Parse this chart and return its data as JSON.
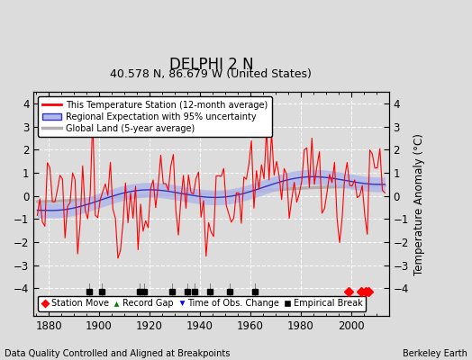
{
  "title": "DELPHI 2 N",
  "subtitle": "40.578 N, 86.679 W (United States)",
  "ylabel": "Temperature Anomaly (°C)",
  "footer_left": "Data Quality Controlled and Aligned at Breakpoints",
  "footer_right": "Berkeley Earth",
  "year_start": 1875,
  "year_end": 2013,
  "ylim": [
    -5.2,
    4.5
  ],
  "yticks": [
    -4,
    -3,
    -2,
    -1,
    0,
    1,
    2,
    3,
    4
  ],
  "xticks": [
    1880,
    1900,
    1920,
    1940,
    1960,
    1980,
    2000
  ],
  "bg_color": "#dcdcdc",
  "plot_bg_color": "#dcdcdc",
  "station_color": "#ff0000",
  "regional_color": "#3333bb",
  "regional_fill_color": "#b0b8e8",
  "global_color": "#b0b0b0",
  "station_move_years": [
    1999,
    2004,
    2006,
    2007
  ],
  "record_gap_years": [],
  "tobs_change_years": [],
  "empirical_break_years": [
    1896,
    1901,
    1916,
    1918,
    1929,
    1935,
    1938,
    1944,
    1952,
    1962
  ],
  "seed": 12345
}
